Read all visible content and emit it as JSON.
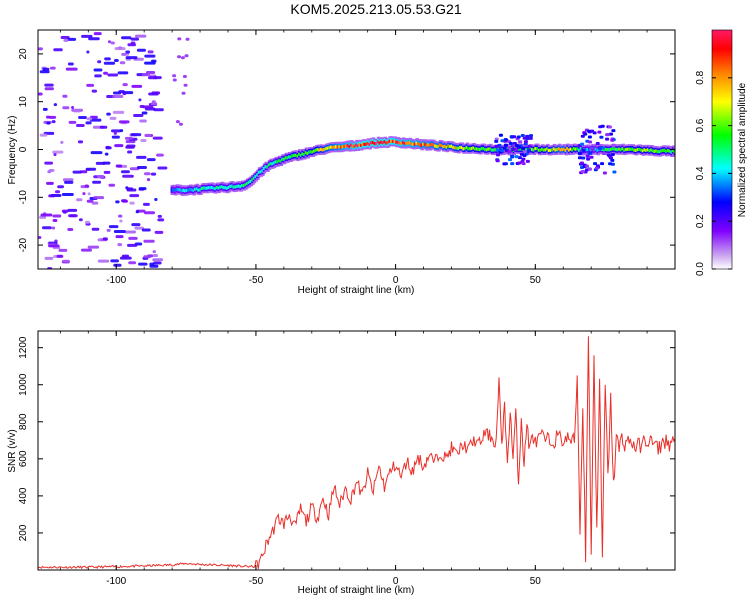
{
  "figure_title": "KOM5.2025.213.05.53.G21",
  "chart_data": [
    {
      "type": "heatmap",
      "panel": "spectrogram",
      "title": "",
      "xlabel": "Height of straight line (km)",
      "ylabel": "Frequency (Hz)",
      "xlim": [
        -128,
        100
      ],
      "ylim": [
        -25,
        25
      ],
      "xticks": [
        -100,
        -50,
        0,
        50
      ],
      "xtick_labels": [
        "-100",
        "-50",
        "0",
        "50"
      ],
      "yticks": [
        -20,
        -10,
        0,
        10,
        20
      ],
      "ytick_labels": [
        "-20",
        "-10",
        "0",
        "10",
        "20"
      ],
      "grid": false,
      "colorbar": {
        "label": "Normalized spectral amplitude",
        "range": [
          0,
          1
        ],
        "ticks": [
          0.0,
          0.2,
          0.4,
          0.6,
          0.8
        ],
        "tick_labels": [
          "0.0",
          "0.2",
          "0.4",
          "0.6",
          "0.8"
        ],
        "colormap": [
          "#ffffff",
          "#c8a0f0",
          "#7f00ff",
          "#0000ff",
          "#00ffff",
          "#00ff00",
          "#ffff00",
          "#ff8000",
          "#ff0000",
          "#ff1a66"
        ]
      },
      "ridge": {
        "x": [
          -80,
          -75,
          -70,
          -65,
          -60,
          -55,
          -52,
          -48,
          -45,
          -40,
          -35,
          -30,
          -25,
          -20,
          -15,
          -10,
          -5,
          0,
          5,
          10,
          15,
          20,
          25,
          30,
          35,
          40,
          45,
          50,
          55,
          60,
          65,
          70,
          75,
          80,
          85,
          90,
          95,
          100
        ],
        "freq": [
          -8.5,
          -8.5,
          -8.3,
          -8.1,
          -7.9,
          -7.6,
          -6.8,
          -4.5,
          -3.2,
          -2.0,
          -1.2,
          -0.5,
          0.2,
          0.5,
          0.8,
          1.2,
          1.5,
          1.6,
          1.3,
          1.0,
          0.8,
          0.5,
          0.3,
          0.2,
          0.0,
          0.0,
          0.0,
          0.0,
          0.0,
          0.0,
          0.0,
          0.0,
          0.0,
          0.0,
          0.0,
          -0.2,
          -0.3,
          -0.4
        ],
        "amplitude": [
          0.3,
          0.4,
          0.45,
          0.45,
          0.45,
          0.45,
          0.5,
          0.45,
          0.45,
          0.5,
          0.55,
          0.6,
          0.7,
          0.8,
          0.9,
          0.95,
          0.95,
          0.9,
          0.85,
          0.8,
          0.75,
          0.7,
          0.65,
          0.6,
          0.55,
          0.5,
          0.55,
          0.6,
          0.65,
          0.75,
          0.55,
          0.35,
          0.5,
          0.55,
          0.6,
          0.6,
          0.55,
          0.5
        ]
      },
      "noise_region_x": [
        -128,
        -85
      ],
      "noise_amplitude": 0.15
    },
    {
      "type": "line",
      "panel": "snr",
      "title": "",
      "xlabel": "Height of straight line (km)",
      "ylabel": "SNR (v/v)",
      "xlim": [
        -128,
        100
      ],
      "ylim": [
        0,
        1290
      ],
      "xticks": [
        -100,
        -50,
        0,
        50
      ],
      "xtick_labels": [
        "-100",
        "-50",
        "0",
        "50"
      ],
      "yticks": [
        200,
        400,
        600,
        800,
        1000,
        1200
      ],
      "ytick_labels": [
        "200",
        "400",
        "600",
        "800",
        "1000",
        "1200"
      ],
      "grid": false,
      "series": [
        {
          "color": "#e8302a",
          "x": [
            -128,
            -110,
            -100,
            -90,
            -80,
            -75,
            -70,
            -60,
            -55,
            -50,
            -48,
            -46,
            -44,
            -42,
            -40,
            -38,
            -36,
            -34,
            -32,
            -30,
            -28,
            -26,
            -24,
            -22,
            -20,
            -18,
            -16,
            -14,
            -12,
            -10,
            -8,
            -6,
            -4,
            -2,
            0,
            2,
            4,
            6,
            8,
            10,
            12,
            14,
            16,
            18,
            20,
            22,
            24,
            26,
            28,
            30,
            32,
            34,
            36,
            37,
            38,
            39,
            40,
            41,
            42,
            43,
            44,
            45,
            46,
            47,
            48,
            49,
            50,
            52,
            54,
            56,
            58,
            60,
            62,
            64,
            65,
            66,
            67,
            68,
            69,
            70,
            71,
            72,
            73,
            74,
            75,
            76,
            77,
            78,
            79,
            80,
            81,
            82,
            84,
            86,
            88,
            90,
            92,
            94,
            96,
            98,
            100
          ],
          "values": [
            15,
            15,
            18,
            22,
            28,
            35,
            30,
            25,
            20,
            18,
            60,
            150,
            210,
            280,
            250,
            300,
            230,
            330,
            260,
            340,
            280,
            390,
            300,
            450,
            350,
            440,
            380,
            480,
            400,
            520,
            420,
            560,
            450,
            530,
            570,
            500,
            590,
            530,
            610,
            560,
            620,
            580,
            640,
            600,
            660,
            620,
            680,
            650,
            700,
            680,
            740,
            720,
            690,
            1030,
            640,
            930,
            540,
            880,
            600,
            840,
            470,
            830,
            560,
            800,
            640,
            740,
            680,
            720,
            700,
            690,
            720,
            700,
            710,
            690,
            1060,
            200,
            900,
            80,
            1290,
            60,
            1170,
            200,
            1030,
            60,
            1000,
            500,
            920,
            450,
            720,
            650,
            720,
            680,
            700,
            660,
            680,
            700,
            690,
            650,
            700,
            680,
            710
          ]
        }
      ]
    }
  ]
}
